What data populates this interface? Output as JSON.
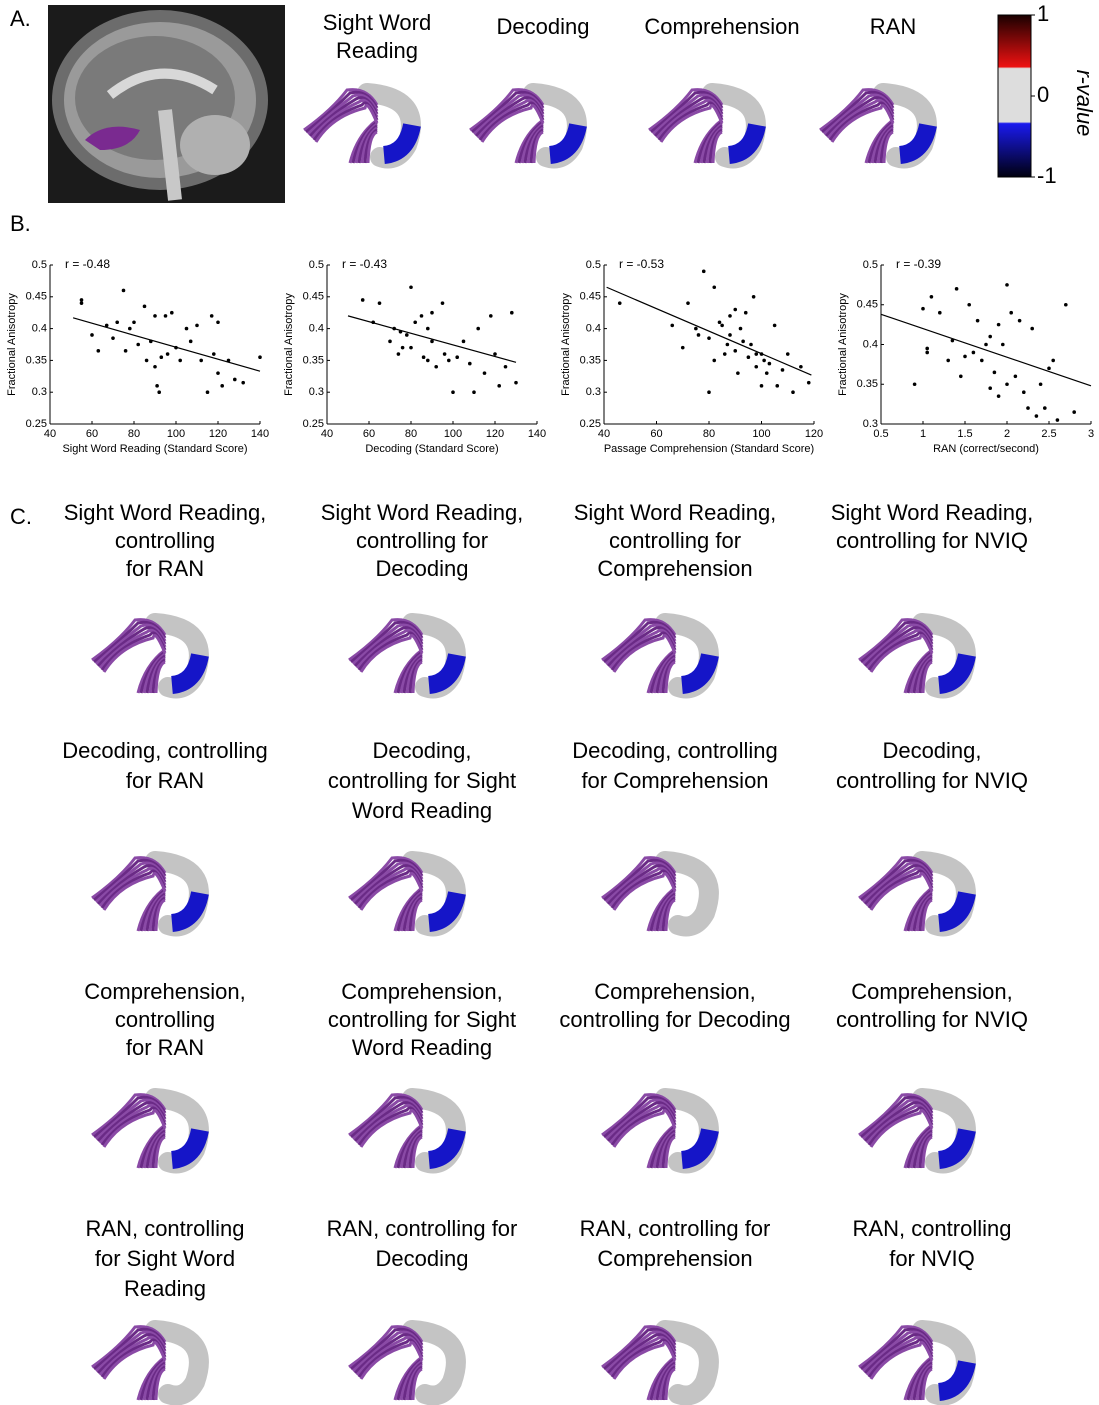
{
  "panel_a": {
    "label": "A.",
    "titles": [
      [
        "Sight Word",
        "Reading"
      ],
      [
        "Decoding"
      ],
      [
        "Comprehension"
      ],
      [
        "RAN"
      ]
    ],
    "colorbar": {
      "label": "r-value",
      "lim": [
        -1,
        1
      ],
      "ticks": [
        1,
        0,
        -1
      ]
    }
  },
  "panel_b": {
    "label": "B."
  },
  "chart_data": [
    {
      "type": "scatter",
      "annotation": "r = -0.48",
      "x_label": "Sight Word Reading (Standard Score)",
      "y_label": "Fractional Anisotropy",
      "color": "#000000",
      "xlim": [
        40,
        140
      ],
      "xticks": [
        40,
        60,
        80,
        100,
        120,
        140
      ],
      "ylim": [
        0.25,
        0.5
      ],
      "yticks": [
        0.25,
        0.3,
        0.35,
        0.4,
        0.45,
        0.5
      ],
      "x": [
        55,
        55,
        60,
        63,
        67,
        70,
        72,
        75,
        76,
        78,
        80,
        82,
        85,
        86,
        88,
        90,
        90,
        91,
        92,
        93,
        95,
        96,
        98,
        100,
        102,
        105,
        107,
        110,
        112,
        115,
        117,
        118,
        120,
        120,
        122,
        125,
        128,
        132,
        140
      ],
      "values": [
        0.445,
        0.44,
        0.39,
        0.365,
        0.405,
        0.385,
        0.41,
        0.46,
        0.365,
        0.4,
        0.41,
        0.375,
        0.435,
        0.35,
        0.38,
        0.42,
        0.34,
        0.31,
        0.3,
        0.355,
        0.42,
        0.36,
        0.425,
        0.37,
        0.35,
        0.4,
        0.38,
        0.405,
        0.35,
        0.3,
        0.42,
        0.36,
        0.41,
        0.33,
        0.31,
        0.35,
        0.32,
        0.315,
        0.355
      ],
      "fit_line": {
        "x": [
          51,
          140
        ],
        "values": [
          0.417,
          0.333
        ]
      }
    },
    {
      "type": "scatter",
      "annotation": "r = -0.43",
      "x_label": "Decoding (Standard Score)",
      "y_label": "Fractional Anisotropy",
      "color": "#000000",
      "xlim": [
        40,
        140
      ],
      "xticks": [
        40,
        60,
        80,
        100,
        120,
        140
      ],
      "ylim": [
        0.25,
        0.5
      ],
      "yticks": [
        0.25,
        0.3,
        0.35,
        0.4,
        0.45,
        0.5
      ],
      "x": [
        57,
        62,
        65,
        70,
        72,
        74,
        75,
        78,
        80,
        80,
        82,
        85,
        86,
        88,
        90,
        90,
        92,
        95,
        96,
        98,
        100,
        102,
        105,
        108,
        110,
        112,
        115,
        118,
        120,
        122,
        125,
        128,
        130,
        88,
        76
      ],
      "values": [
        0.445,
        0.41,
        0.44,
        0.38,
        0.4,
        0.36,
        0.395,
        0.39,
        0.465,
        0.37,
        0.41,
        0.42,
        0.355,
        0.4,
        0.425,
        0.38,
        0.34,
        0.44,
        0.36,
        0.35,
        0.3,
        0.355,
        0.38,
        0.345,
        0.3,
        0.4,
        0.33,
        0.42,
        0.36,
        0.31,
        0.34,
        0.425,
        0.315,
        0.35,
        0.37
      ],
      "fit_line": {
        "x": [
          50,
          130
        ],
        "values": [
          0.42,
          0.347
        ]
      }
    },
    {
      "type": "scatter",
      "annotation": "r = -0.53",
      "x_label": "Passage Comprehension (Standard Score)",
      "y_label": "Fractional Anisotropy",
      "color": "#000000",
      "xlim": [
        40,
        120
      ],
      "xticks": [
        40,
        60,
        80,
        100,
        120
      ],
      "ylim": [
        0.25,
        0.5
      ],
      "yticks": [
        0.25,
        0.3,
        0.35,
        0.4,
        0.45,
        0.5
      ],
      "x": [
        46,
        66,
        70,
        72,
        75,
        78,
        80,
        80,
        82,
        84,
        85,
        86,
        87,
        88,
        88,
        90,
        90,
        91,
        92,
        93,
        94,
        95,
        96,
        97,
        98,
        98,
        100,
        100,
        101,
        102,
        103,
        105,
        106,
        108,
        110,
        112,
        115,
        118,
        82,
        76
      ],
      "values": [
        0.44,
        0.405,
        0.37,
        0.44,
        0.4,
        0.49,
        0.385,
        0.3,
        0.465,
        0.41,
        0.405,
        0.36,
        0.375,
        0.42,
        0.39,
        0.43,
        0.365,
        0.33,
        0.4,
        0.38,
        0.425,
        0.355,
        0.375,
        0.45,
        0.34,
        0.36,
        0.36,
        0.31,
        0.35,
        0.33,
        0.345,
        0.405,
        0.31,
        0.335,
        0.36,
        0.3,
        0.34,
        0.315,
        0.35,
        0.39
      ],
      "fit_line": {
        "x": [
          41,
          119
        ],
        "values": [
          0.465,
          0.327
        ]
      }
    },
    {
      "type": "scatter",
      "annotation": "r = -0.39",
      "x_label": "RAN (correct/second)",
      "y_label": "Fractional Anisotropy",
      "color": "#000000",
      "xlim": [
        0.5,
        3
      ],
      "xticks": [
        0.5,
        1,
        1.5,
        2,
        2.5,
        3
      ],
      "ylim": [
        0.3,
        0.5
      ],
      "yticks": [
        0.3,
        0.35,
        0.4,
        0.45,
        0.5
      ],
      "x": [
        0.9,
        1.0,
        1.05,
        1.1,
        1.2,
        1.3,
        1.35,
        1.4,
        1.5,
        1.55,
        1.6,
        1.65,
        1.7,
        1.75,
        1.8,
        1.85,
        1.9,
        1.9,
        1.95,
        2.0,
        2.0,
        2.05,
        2.1,
        2.15,
        2.2,
        2.25,
        2.3,
        2.35,
        2.4,
        2.45,
        2.5,
        2.55,
        2.6,
        2.7,
        2.8,
        1.05,
        1.45,
        1.8
      ],
      "values": [
        0.35,
        0.445,
        0.395,
        0.46,
        0.44,
        0.38,
        0.405,
        0.47,
        0.385,
        0.45,
        0.39,
        0.43,
        0.38,
        0.4,
        0.41,
        0.365,
        0.425,
        0.335,
        0.4,
        0.475,
        0.35,
        0.44,
        0.36,
        0.43,
        0.34,
        0.32,
        0.42,
        0.31,
        0.35,
        0.32,
        0.37,
        0.38,
        0.305,
        0.45,
        0.315,
        0.39,
        0.36,
        0.345
      ],
      "fit_line": {
        "x": [
          0.5,
          3
        ],
        "values": [
          0.438,
          0.348
        ]
      }
    }
  ],
  "panel_c": {
    "label": "C.",
    "rows": [
      [
        [
          "Sight Word Reading,",
          "controlling",
          "for RAN"
        ],
        [
          "Sight Word Reading,",
          "controlling for",
          "Decoding"
        ],
        [
          "Sight Word Reading,",
          "controlling for",
          "Comprehension"
        ],
        [
          "Sight Word Reading,",
          "controlling for NVIQ"
        ]
      ],
      [
        [
          "Decoding, controlling",
          "for RAN"
        ],
        [
          "Decoding,",
          "controlling for Sight",
          "Word Reading"
        ],
        [
          "Decoding, controlling",
          "for Comprehension"
        ],
        [
          "Decoding,",
          "controlling for NVIQ"
        ]
      ],
      [
        [
          "Comprehension,",
          "controlling",
          "for RAN"
        ],
        [
          "Comprehension,",
          "controlling for Sight",
          "Word Reading"
        ],
        [
          "Comprehension,",
          "controlling for Decoding"
        ],
        [
          "Comprehension,",
          "controlling for NVIQ"
        ]
      ],
      [
        [
          "RAN, controlling",
          "for Sight Word",
          "Reading"
        ],
        [
          "RAN, controlling for",
          "Decoding"
        ],
        [
          "RAN, controlling for",
          "Comprehension"
        ],
        [
          "RAN, controlling",
          "for NVIQ"
        ]
      ]
    ]
  }
}
